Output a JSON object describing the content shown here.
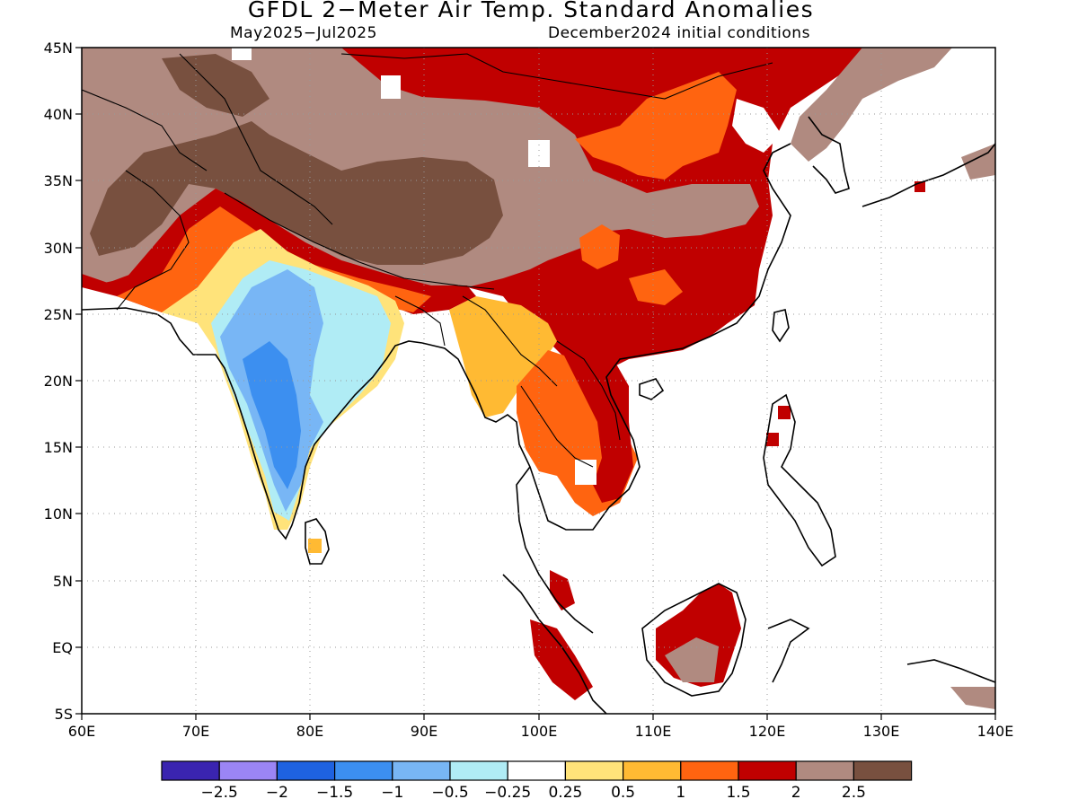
{
  "title": "GFDL 2−Meter Air Temp. Standard Anomalies",
  "subtitle_left": "May2025−Jul2025",
  "subtitle_right": "December2024 initial conditions",
  "lat_labels": [
    "45N",
    "40N",
    "35N",
    "30N",
    "25N",
    "20N",
    "15N",
    "10N",
    "5N",
    "EQ",
    "5S"
  ],
  "lon_labels": [
    "60E",
    "70E",
    "80E",
    "90E",
    "100E",
    "110E",
    "120E",
    "130E",
    "140E"
  ],
  "colorbar": {
    "colors": [
      "#3a24b0",
      "#9b85f5",
      "#1e62e0",
      "#3c8ff0",
      "#78b6f5",
      "#b0ecf5",
      "#ffffff",
      "#ffe37a",
      "#ffba33",
      "#ff6410",
      "#c00000",
      "#b08a80",
      "#78503f"
    ],
    "labels": [
      "−2.5",
      "−2",
      "−1.5",
      "−1",
      "−0.5",
      "−0.25",
      "0.25",
      "0.5",
      "1",
      "1.5",
      "2",
      "2.5"
    ]
  },
  "regions": {
    "brown_dark": "#78503f",
    "brown_light": "#b08a80",
    "dark_red": "#c00000",
    "orange": "#ff6410",
    "light_orange": "#ffba33",
    "yellow": "#ffe37a",
    "light_blue": "#b0ecf5",
    "mid_blue": "#78b6f5",
    "blue": "#3c8ff0"
  }
}
